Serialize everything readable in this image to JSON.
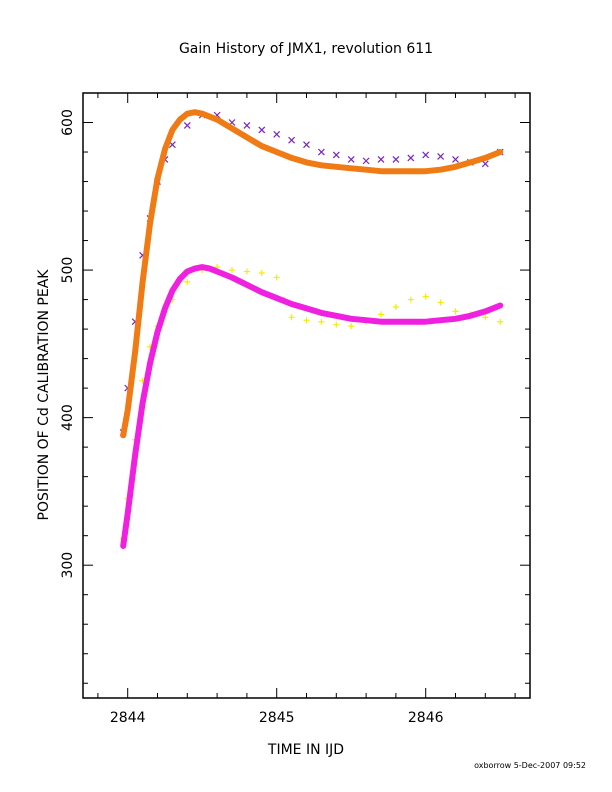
{
  "chart_data": {
    "type": "scatter",
    "title": "Gain History of JMX1, revolution 611",
    "xlabel": "TIME IN IJD",
    "ylabel": "POSITION OF Cd CALIBRATION PEAK",
    "xlim": [
      2843.7,
      2846.7
    ],
    "ylim": [
      210,
      620
    ],
    "x_ticks": [
      2844,
      2845,
      2846
    ],
    "y_ticks": [
      300,
      400,
      500,
      600
    ],
    "grid": false,
    "series": [
      {
        "marker": "x",
        "color": "#7a22c8",
        "x": [
          2843.97,
          2844.0,
          2844.05,
          2844.1,
          2844.15,
          2844.2,
          2844.25,
          2844.3,
          2844.4,
          2844.5,
          2844.6,
          2844.7,
          2844.8,
          2844.9,
          2845.0,
          2845.1,
          2845.2,
          2845.3,
          2845.4,
          2845.5,
          2845.6,
          2845.7,
          2845.8,
          2845.9,
          2846.0,
          2846.1,
          2846.2,
          2846.3,
          2846.4,
          2846.5
        ],
        "y": [
          390,
          420,
          465,
          510,
          535,
          560,
          575,
          585,
          598,
          605,
          605,
          600,
          598,
          595,
          592,
          588,
          585,
          580,
          578,
          575,
          574,
          575,
          575,
          576,
          578,
          577,
          575,
          573,
          572,
          580
        ]
      },
      {
        "marker": "curve",
        "color": "#f07a14",
        "x": [
          2843.97,
          2844.0,
          2844.05,
          2844.1,
          2844.15,
          2844.2,
          2844.25,
          2844.3,
          2844.35,
          2844.4,
          2844.45,
          2844.5,
          2844.6,
          2844.7,
          2844.8,
          2844.9,
          2845.0,
          2845.1,
          2845.2,
          2845.3,
          2845.4,
          2845.5,
          2845.6,
          2845.7,
          2845.8,
          2845.9,
          2846.0,
          2846.1,
          2846.2,
          2846.3,
          2846.4,
          2846.5
        ],
        "y": [
          388,
          405,
          445,
          492,
          532,
          562,
          582,
          595,
          602,
          606,
          607,
          606,
          602,
          596,
          590,
          584,
          580,
          576,
          573,
          571,
          570,
          569,
          568,
          567,
          567,
          567,
          567,
          568,
          570,
          573,
          576,
          580
        ]
      },
      {
        "marker": "+",
        "color": "#f2ee00",
        "x": [
          2843.97,
          2844.0,
          2844.05,
          2844.1,
          2844.15,
          2844.2,
          2844.3,
          2844.4,
          2844.5,
          2844.6,
          2844.7,
          2844.8,
          2844.9,
          2845.0,
          2845.05,
          2845.1,
          2845.2,
          2845.3,
          2845.4,
          2845.5,
          2845.6,
          2845.7,
          2845.8,
          2845.9,
          2846.0,
          2846.1,
          2846.2,
          2846.3,
          2846.4,
          2846.5
        ],
        "y": [
          318,
          345,
          385,
          425,
          448,
          462,
          480,
          492,
          500,
          502,
          500,
          499,
          498,
          495,
          480,
          468,
          466,
          465,
          463,
          462,
          465,
          470,
          475,
          480,
          482,
          478,
          472,
          470,
          468,
          465
        ]
      },
      {
        "marker": "curve",
        "color": "#f020e0",
        "x": [
          2843.97,
          2844.0,
          2844.05,
          2844.1,
          2844.15,
          2844.2,
          2844.25,
          2844.3,
          2844.35,
          2844.4,
          2844.45,
          2844.5,
          2844.55,
          2844.6,
          2844.7,
          2844.8,
          2844.9,
          2845.0,
          2845.1,
          2845.2,
          2845.3,
          2845.4,
          2845.5,
          2845.6,
          2845.7,
          2845.8,
          2845.9,
          2846.0,
          2846.1,
          2846.2,
          2846.3,
          2846.4,
          2846.5
        ],
        "y": [
          313,
          335,
          375,
          410,
          437,
          458,
          474,
          486,
          494,
          499,
          501,
          502,
          501,
          499,
          495,
          490,
          485,
          481,
          477,
          474,
          471,
          469,
          467,
          466,
          465,
          465,
          465,
          465,
          466,
          467,
          469,
          472,
          476
        ]
      }
    ]
  },
  "footer": {
    "stamp": "oxborrow  5-Dec-2007 09:52"
  }
}
